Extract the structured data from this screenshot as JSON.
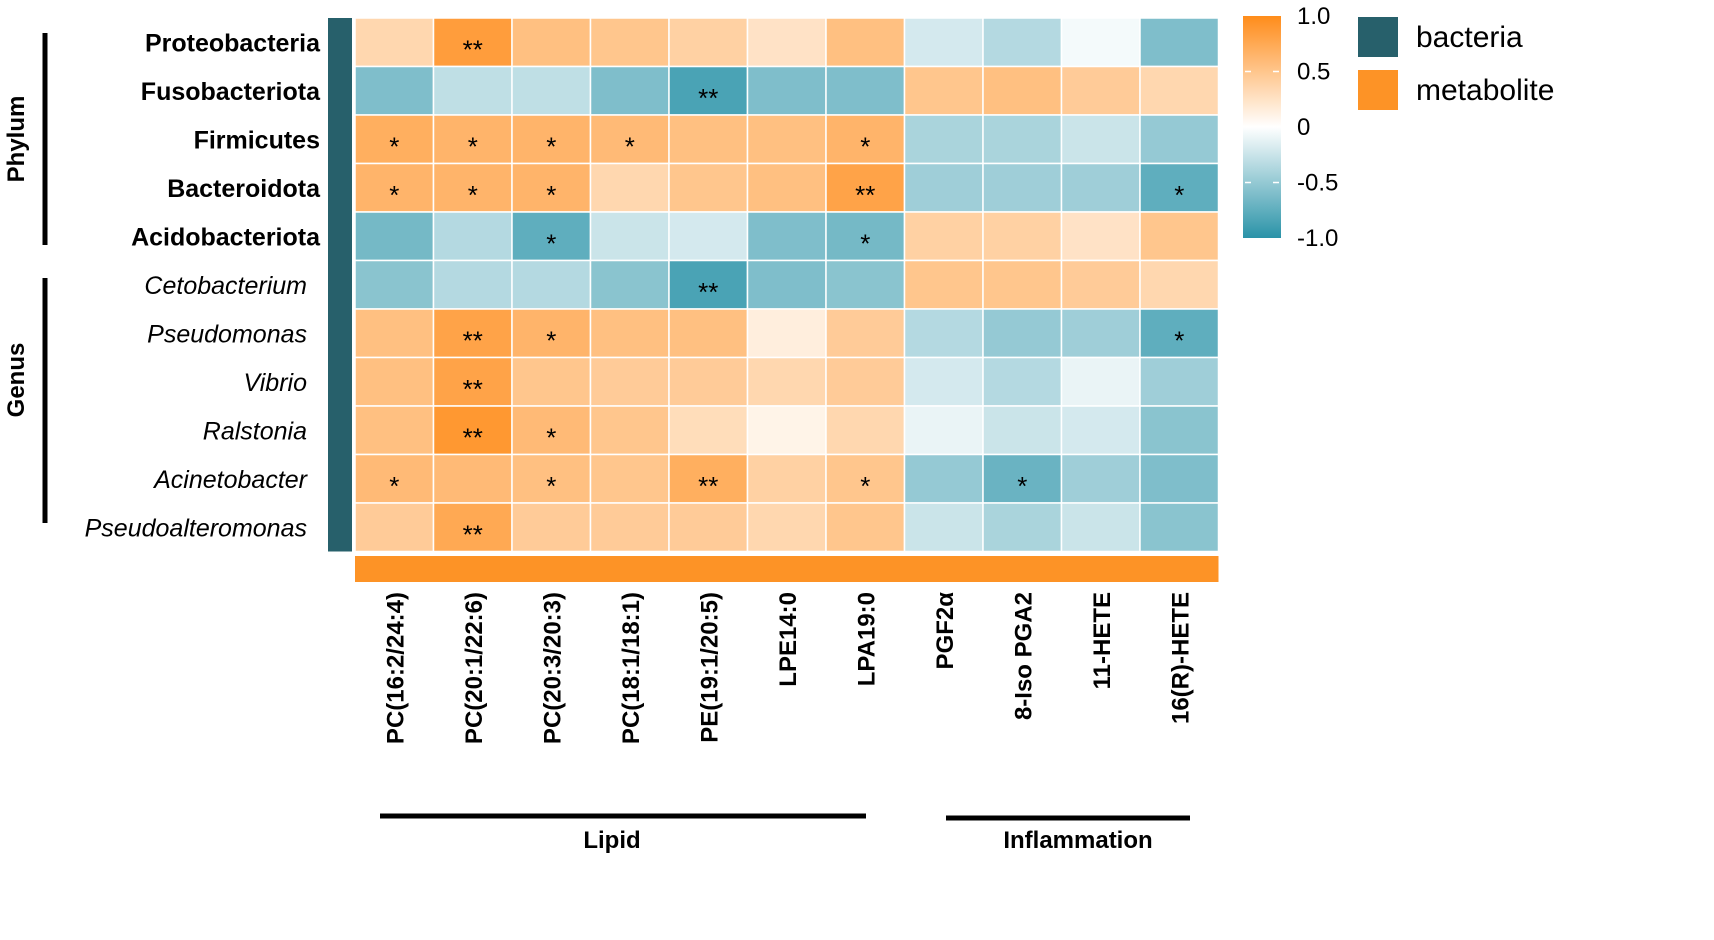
{
  "chart_data": {
    "type": "heatmap",
    "title": "",
    "rows": [
      "Proteobacteria",
      "Fusobacteriota",
      "Firmicutes",
      "Bacteroidota",
      "Acidobacteriota",
      "Cetobacterium",
      "Pseudomonas",
      "Vibrio",
      "Ralstonia",
      "Acinetobacter",
      "Pseudoalteromonas"
    ],
    "row_groups": [
      {
        "label": "Phylum",
        "rows": [
          "Proteobacteria",
          "Fusobacteriota",
          "Firmicutes",
          "Bacteroidota",
          "Acidobacteriota"
        ]
      },
      {
        "label": "Genus",
        "rows": [
          "Cetobacterium",
          "Pseudomonas",
          "Vibrio",
          "Ralstonia",
          "Acinetobacter",
          "Pseudoalteromonas"
        ]
      }
    ],
    "columns": [
      "PC(16:2/24:4)",
      "PC(20:1/22:6)",
      "PC(20:3/20:3)",
      "PC(18:1/18:1)",
      "PE(19:1/20:5)",
      "LPE14:0",
      "LPA19:0",
      "PGF2α",
      "8-Iso PGA2",
      "11-HETE",
      "16(R)-HETE"
    ],
    "column_groups": [
      {
        "label": "Lipid",
        "columns": [
          "PC(16:2/24:4)",
          "PC(20:1/22:6)",
          "PC(20:3/20:3)",
          "PC(18:1/18:1)",
          "PE(19:1/20:5)",
          "LPE14:0",
          "LPA19:0"
        ]
      },
      {
        "label": "Inflammation",
        "columns": [
          "PGF2α",
          "8-Iso PGA2",
          "11-HETE",
          "16(R)-HETE"
        ]
      }
    ],
    "values": [
      [
        0.35,
        0.85,
        0.55,
        0.5,
        0.4,
        0.25,
        0.55,
        -0.2,
        -0.35,
        -0.05,
        -0.6
      ],
      [
        -0.6,
        -0.3,
        -0.3,
        -0.6,
        -0.85,
        -0.6,
        -0.6,
        0.5,
        0.55,
        0.45,
        0.35
      ],
      [
        0.7,
        0.65,
        0.65,
        0.6,
        0.55,
        0.55,
        0.65,
        -0.4,
        -0.4,
        -0.25,
        -0.5
      ],
      [
        0.65,
        0.65,
        0.65,
        0.35,
        0.5,
        0.55,
        0.8,
        -0.45,
        -0.45,
        -0.45,
        -0.75
      ],
      [
        -0.65,
        -0.35,
        -0.75,
        -0.25,
        -0.2,
        -0.6,
        -0.65,
        0.4,
        0.4,
        0.25,
        0.5
      ],
      [
        -0.55,
        -0.35,
        -0.35,
        -0.55,
        -0.85,
        -0.6,
        -0.55,
        0.5,
        0.5,
        0.45,
        0.35
      ],
      [
        0.55,
        0.8,
        0.65,
        0.55,
        0.55,
        0.15,
        0.45,
        -0.35,
        -0.5,
        -0.45,
        -0.75
      ],
      [
        0.55,
        0.8,
        0.5,
        0.45,
        0.45,
        0.35,
        0.45,
        -0.2,
        -0.35,
        -0.1,
        -0.45
      ],
      [
        0.55,
        0.9,
        0.6,
        0.5,
        0.3,
        0.1,
        0.35,
        -0.1,
        -0.25,
        -0.2,
        -0.55
      ],
      [
        0.6,
        0.6,
        0.55,
        0.5,
        0.7,
        0.4,
        0.5,
        -0.5,
        -0.7,
        -0.45,
        -0.6
      ],
      [
        0.45,
        0.75,
        0.45,
        0.45,
        0.45,
        0.35,
        0.5,
        -0.25,
        -0.4,
        -0.25,
        -0.55
      ]
    ],
    "significance": [
      [
        "",
        "**",
        "",
        "",
        "",
        "",
        "",
        "",
        "",
        "",
        ""
      ],
      [
        "",
        "",
        "",
        "",
        "**",
        "",
        "",
        "",
        "",
        "",
        ""
      ],
      [
        "*",
        "*",
        "*",
        "*",
        "",
        "",
        "*",
        "",
        "",
        "",
        ""
      ],
      [
        "*",
        "*",
        "*",
        "",
        "",
        "",
        "**",
        "",
        "",
        "",
        "*"
      ],
      [
        "",
        "",
        "*",
        "",
        "",
        "",
        "*",
        "",
        "",
        "",
        ""
      ],
      [
        "",
        "",
        "",
        "",
        "**",
        "",
        "",
        "",
        "",
        "",
        ""
      ],
      [
        "",
        "**",
        "*",
        "",
        "",
        "",
        "",
        "",
        "",
        "",
        "*"
      ],
      [
        "",
        "**",
        "",
        "",
        "",
        "",
        "",
        "",
        "",
        "",
        ""
      ],
      [
        "",
        "**",
        "*",
        "",
        "",
        "",
        "",
        "",
        "",
        "",
        ""
      ],
      [
        "*",
        "",
        "*",
        "",
        "**",
        "",
        "*",
        "",
        "*",
        "",
        ""
      ],
      [
        "",
        "**",
        "",
        "",
        "",
        "",
        "",
        "",
        "",
        "",
        ""
      ]
    ],
    "color_scale": {
      "min": -1.0,
      "max": 1.0,
      "ticks": [
        "1.0",
        "0.5",
        "0",
        "-0.5",
        "-1.0"
      ],
      "high_color": "#ff8c1a",
      "mid_color": "#ffffff",
      "low_color": "#2a93a8"
    },
    "legend": [
      {
        "label": "bacteria",
        "color": "#27606b"
      },
      {
        "label": "metabolite",
        "color": "#fd9326"
      }
    ],
    "row_annotation_color": "#27606b",
    "column_annotation_color": "#fd9326"
  }
}
